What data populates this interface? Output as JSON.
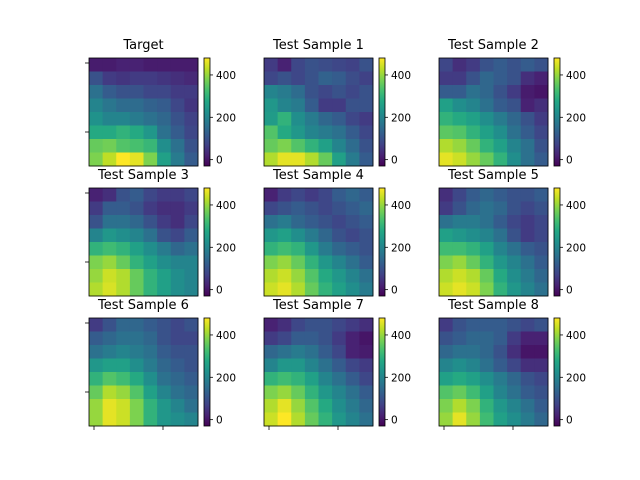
{
  "chart_data": {
    "type": "heatmap",
    "colormap": "viridis",
    "vmin": -30,
    "vmax": 480,
    "colorbar_ticks": [
      0,
      200,
      400
    ],
    "panels": [
      {
        "title": "Target",
        "grid": [
          [
            10,
            10,
            20,
            20,
            10,
            10,
            10,
            10
          ],
          [
            100,
            60,
            50,
            60,
            60,
            50,
            40,
            30
          ],
          [
            160,
            120,
            100,
            100,
            80,
            80,
            60,
            60
          ],
          [
            200,
            170,
            150,
            150,
            130,
            120,
            80,
            50
          ],
          [
            230,
            200,
            200,
            180,
            160,
            140,
            100,
            70
          ],
          [
            280,
            280,
            300,
            280,
            240,
            160,
            120,
            80
          ],
          [
            360,
            370,
            340,
            330,
            310,
            220,
            160,
            100
          ],
          [
            380,
            430,
            480,
            460,
            380,
            260,
            180,
            120
          ]
        ]
      },
      {
        "title": "Test Sample 1",
        "grid": [
          [
            60,
            20,
            80,
            100,
            90,
            80,
            70,
            100
          ],
          [
            80,
            100,
            80,
            100,
            130,
            120,
            90,
            70
          ],
          [
            200,
            180,
            150,
            100,
            80,
            100,
            80,
            100
          ],
          [
            240,
            200,
            180,
            120,
            60,
            60,
            100,
            100
          ],
          [
            250,
            300,
            220,
            180,
            140,
            120,
            80,
            60
          ],
          [
            340,
            280,
            240,
            200,
            180,
            160,
            120,
            80
          ],
          [
            360,
            380,
            340,
            300,
            260,
            200,
            150,
            100
          ],
          [
            420,
            460,
            460,
            420,
            360,
            260,
            180,
            120
          ]
        ]
      },
      {
        "title": "Test Sample 2",
        "grid": [
          [
            80,
            40,
            60,
            100,
            120,
            100,
            120,
            100
          ],
          [
            60,
            60,
            100,
            140,
            120,
            100,
            40,
            20
          ],
          [
            120,
            120,
            160,
            140,
            100,
            60,
            10,
            0
          ],
          [
            260,
            220,
            200,
            160,
            120,
            100,
            20,
            40
          ],
          [
            300,
            280,
            260,
            220,
            180,
            140,
            100,
            60
          ],
          [
            350,
            340,
            300,
            260,
            220,
            160,
            120,
            80
          ],
          [
            420,
            400,
            360,
            300,
            260,
            200,
            160,
            100
          ],
          [
            460,
            440,
            400,
            360,
            300,
            220,
            160,
            120
          ]
        ]
      },
      {
        "title": "Test Sample 3",
        "grid": [
          [
            20,
            40,
            100,
            120,
            80,
            60,
            60,
            80
          ],
          [
            60,
            120,
            120,
            100,
            60,
            40,
            40,
            60
          ],
          [
            100,
            160,
            160,
            140,
            100,
            60,
            40,
            80
          ],
          [
            200,
            240,
            220,
            200,
            160,
            100,
            80,
            120
          ],
          [
            300,
            320,
            300,
            260,
            220,
            180,
            140,
            160
          ],
          [
            380,
            400,
            360,
            300,
            260,
            220,
            200,
            200
          ],
          [
            400,
            440,
            420,
            360,
            300,
            260,
            220,
            200
          ],
          [
            420,
            450,
            420,
            360,
            300,
            260,
            220,
            200
          ]
        ]
      },
      {
        "title": "Test Sample 4",
        "grid": [
          [
            20,
            60,
            80,
            60,
            80,
            120,
            140,
            120
          ],
          [
            80,
            100,
            120,
            100,
            80,
            100,
            120,
            140
          ],
          [
            160,
            180,
            140,
            120,
            100,
            80,
            100,
            120
          ],
          [
            240,
            260,
            220,
            180,
            140,
            100,
            80,
            100
          ],
          [
            300,
            320,
            300,
            240,
            180,
            140,
            120,
            100
          ],
          [
            380,
            400,
            360,
            300,
            240,
            200,
            160,
            120
          ],
          [
            420,
            440,
            400,
            340,
            280,
            240,
            200,
            160
          ],
          [
            440,
            460,
            420,
            360,
            300,
            260,
            220,
            180
          ]
        ]
      },
      {
        "title": "Test Sample 5",
        "grid": [
          [
            40,
            80,
            120,
            140,
            120,
            100,
            100,
            120
          ],
          [
            60,
            100,
            140,
            160,
            140,
            100,
            80,
            100
          ],
          [
            160,
            180,
            180,
            160,
            120,
            80,
            60,
            80
          ],
          [
            260,
            240,
            220,
            200,
            160,
            100,
            60,
            80
          ],
          [
            320,
            320,
            300,
            260,
            200,
            160,
            120,
            100
          ],
          [
            380,
            400,
            360,
            300,
            240,
            200,
            160,
            120
          ],
          [
            420,
            440,
            420,
            360,
            280,
            220,
            180,
            140
          ],
          [
            440,
            460,
            440,
            380,
            300,
            240,
            200,
            160
          ]
        ]
      },
      {
        "title": "Test Sample 6",
        "grid": [
          [
            60,
            100,
            140,
            140,
            120,
            100,
            80,
            100
          ],
          [
            120,
            140,
            160,
            160,
            140,
            100,
            80,
            80
          ],
          [
            160,
            180,
            200,
            180,
            160,
            120,
            100,
            100
          ],
          [
            240,
            260,
            260,
            220,
            180,
            140,
            120,
            100
          ],
          [
            300,
            340,
            320,
            280,
            220,
            160,
            140,
            120
          ],
          [
            360,
            420,
            400,
            340,
            260,
            200,
            160,
            140
          ],
          [
            400,
            460,
            440,
            380,
            300,
            240,
            200,
            160
          ],
          [
            400,
            460,
            440,
            380,
            300,
            240,
            220,
            200
          ]
        ]
      },
      {
        "title": "Test Sample 7",
        "grid": [
          [
            20,
            40,
            80,
            100,
            100,
            80,
            60,
            40
          ],
          [
            60,
            80,
            120,
            120,
            100,
            60,
            20,
            0
          ],
          [
            140,
            160,
            180,
            160,
            120,
            80,
            20,
            10
          ],
          [
            200,
            240,
            240,
            200,
            160,
            120,
            80,
            60
          ],
          [
            300,
            320,
            300,
            260,
            200,
            160,
            120,
            80
          ],
          [
            380,
            400,
            360,
            300,
            240,
            200,
            160,
            120
          ],
          [
            420,
            460,
            400,
            340,
            280,
            220,
            180,
            140
          ],
          [
            440,
            480,
            420,
            360,
            300,
            240,
            200,
            160
          ]
        ]
      },
      {
        "title": "Test Sample 8",
        "grid": [
          [
            60,
            100,
            120,
            120,
            120,
            100,
            80,
            100
          ],
          [
            100,
            120,
            140,
            140,
            120,
            60,
            20,
            20
          ],
          [
            140,
            160,
            160,
            140,
            100,
            40,
            0,
            0
          ],
          [
            200,
            220,
            200,
            160,
            120,
            80,
            40,
            40
          ],
          [
            260,
            280,
            260,
            220,
            180,
            140,
            100,
            80
          ],
          [
            340,
            360,
            320,
            260,
            200,
            160,
            120,
            100
          ],
          [
            380,
            420,
            380,
            300,
            240,
            200,
            160,
            120
          ],
          [
            400,
            460,
            400,
            320,
            260,
            220,
            180,
            140
          ]
        ]
      }
    ]
  }
}
